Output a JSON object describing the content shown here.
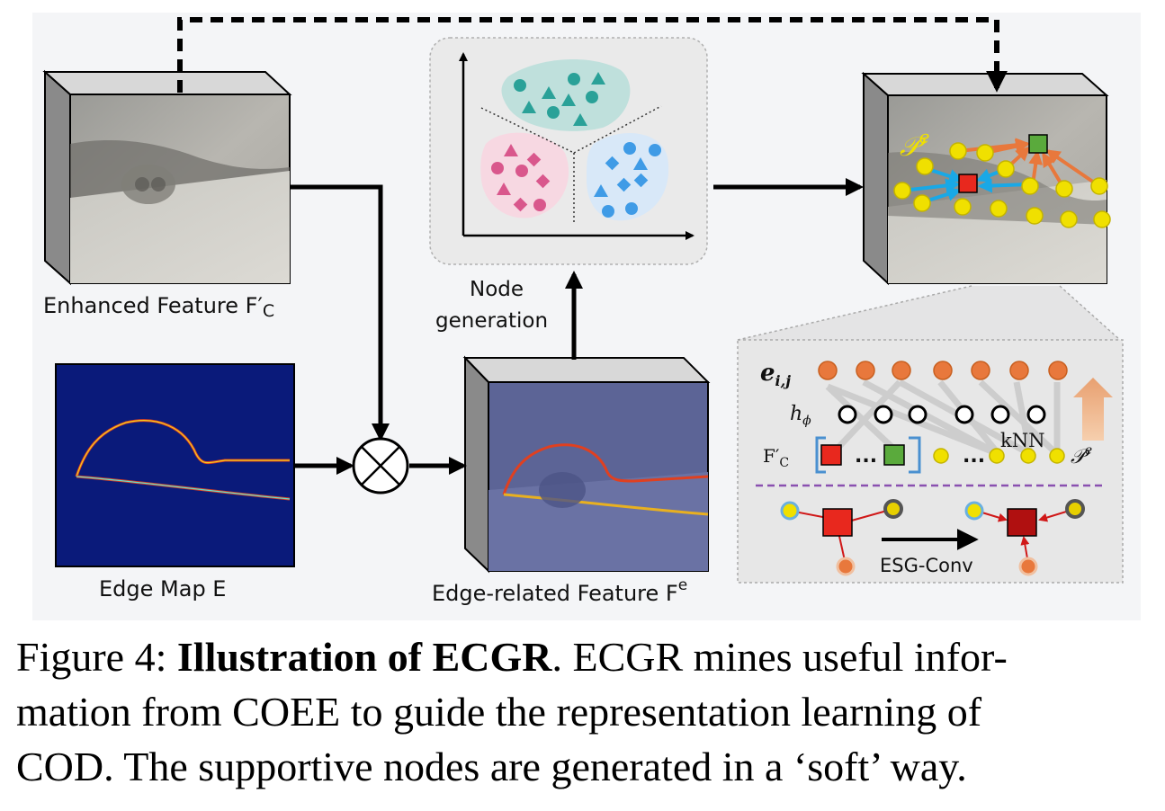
{
  "figure": {
    "labels": {
      "enhanced_feature": "Enhanced  Feature F′",
      "enhanced_feature_sub": "C",
      "edge_map": "Edge Map E",
      "edge_feature": "Edge-related Feature F",
      "edge_feature_sup": "e",
      "node_generation_line1": "Node",
      "node_generation_line2": "generation"
    },
    "detail": {
      "edge_weight": "e",
      "edge_weight_sub": "i,j",
      "h_phi": "h",
      "h_phi_sub": "ϕ",
      "f_c": "F′",
      "f_c_sub": "C",
      "ellipsis": "...",
      "knn": "kNN",
      "p_e": "𝒫",
      "p_e_sup": "e",
      "esg_conv": "ESG-Conv"
    },
    "p_e_big": "𝒫",
    "p_e_big_sup": "e",
    "colors": {
      "teal_cluster": "#2aa198",
      "pink_cluster": "#d9578c",
      "blue_cluster": "#3f9be6",
      "node_yellow": "#f0e000",
      "node_red": "#e8281e",
      "node_green": "#5aaa3c",
      "arrow_cyan": "#19a8e6",
      "arrow_orange": "#e8783c",
      "edge_map_bg": "#0a1a7a"
    }
  },
  "caption": {
    "prefix": "Figure 4: ",
    "title": "Illustration of ECGR",
    "line1_rest": ". ECGR mines useful infor-",
    "line2": "mation from COEE to guide the representation learning of",
    "line3": "COD. The supportive nodes are generated in a ‘soft’ way."
  }
}
